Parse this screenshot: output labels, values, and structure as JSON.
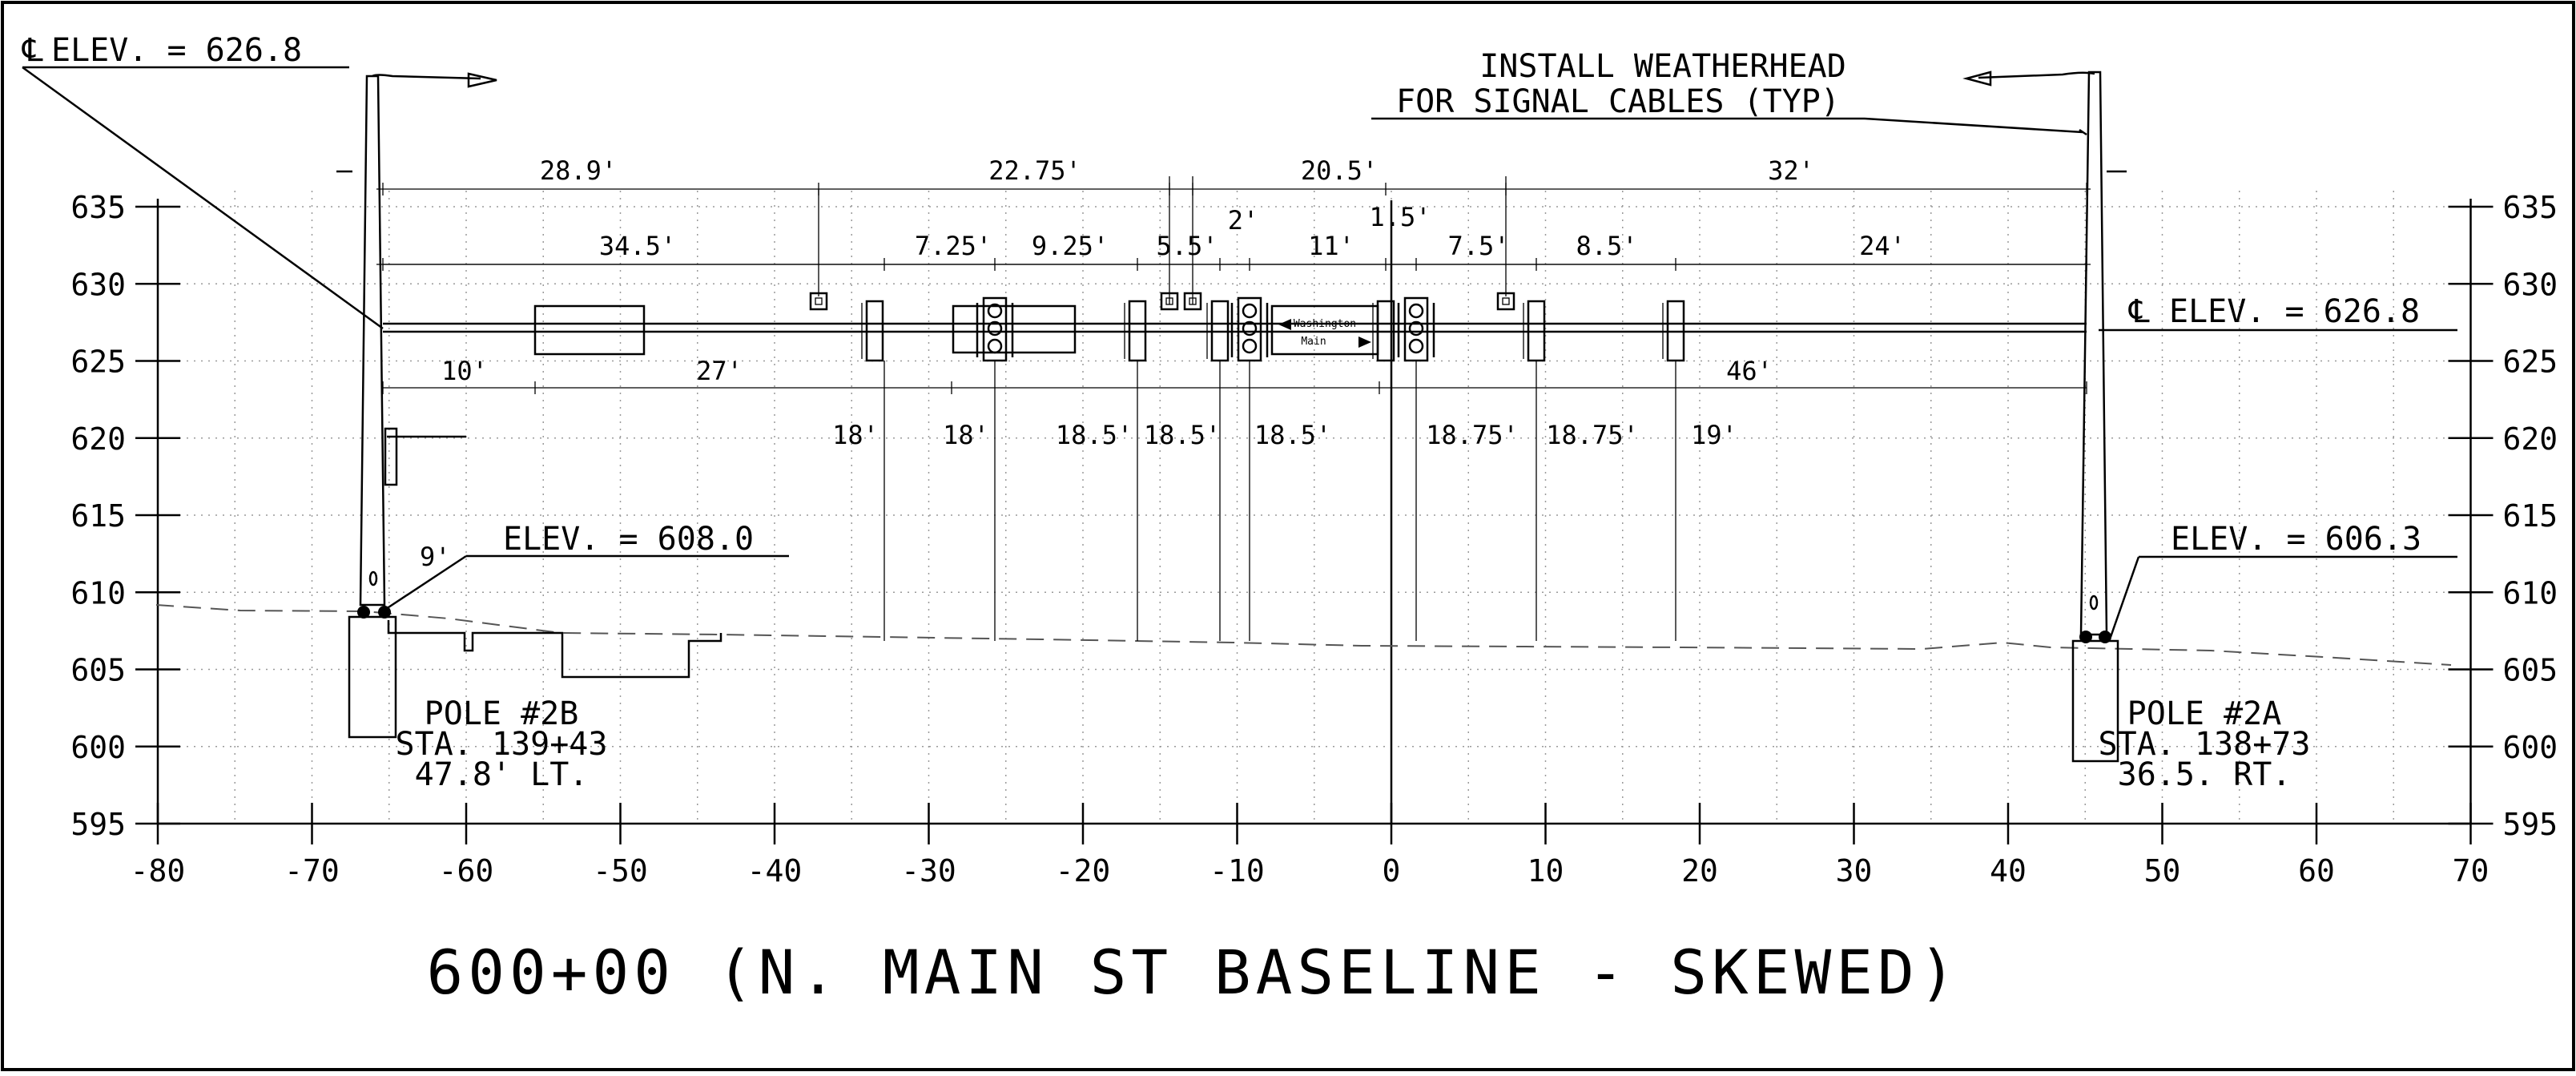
{
  "title": "600+00 (N. MAIN ST BASELINE - SKEWED)",
  "axis": {
    "x_ticks": [
      "-80",
      "-70",
      "-60",
      "-50",
      "-40",
      "-30",
      "-20",
      "-10",
      "0",
      "10",
      "20",
      "30",
      "40",
      "50",
      "60",
      "70"
    ],
    "y_ticks": [
      "635",
      "630",
      "625",
      "620",
      "615",
      "610",
      "605",
      "600",
      "595"
    ]
  },
  "callouts": {
    "cl_elev_left": "ELEV. = 626.8",
    "cl_elev_right": "ELEV. = 626.8",
    "cl_symbol": "℄",
    "weatherhead_line1": "INSTALL WEATHERHEAD",
    "weatherhead_line2": "FOR SIGNAL CABLES (TYP)",
    "elev_left": "ELEV. = 608.0",
    "elev_right": "ELEV. = 606.3",
    "base_height": "9'"
  },
  "poles": [
    {
      "name": "POLE #2B",
      "station": "STA. 139+43",
      "offset": "47.8' LT."
    },
    {
      "name": "POLE #2A",
      "station": "STA. 138+73",
      "offset": "36.5. RT."
    }
  ],
  "dimensions": {
    "top_row": [
      "28.9'",
      "22.75'",
      "20.5'",
      "32'"
    ],
    "second_row": [
      "34.5'",
      "7.25'",
      "9.25'",
      "5.5'",
      "2'",
      "11'",
      "1.5'",
      "7.5'",
      "8.5'",
      "24'"
    ],
    "lower_row": [
      "10'",
      "27'",
      "46'"
    ],
    "clearances": [
      "18'",
      "18'",
      "18.5'",
      "18.5'",
      "18.5'",
      "18.75'",
      "18.75'",
      "19'"
    ]
  },
  "sign": {
    "line1": "Washington",
    "line2": "Main"
  }
}
